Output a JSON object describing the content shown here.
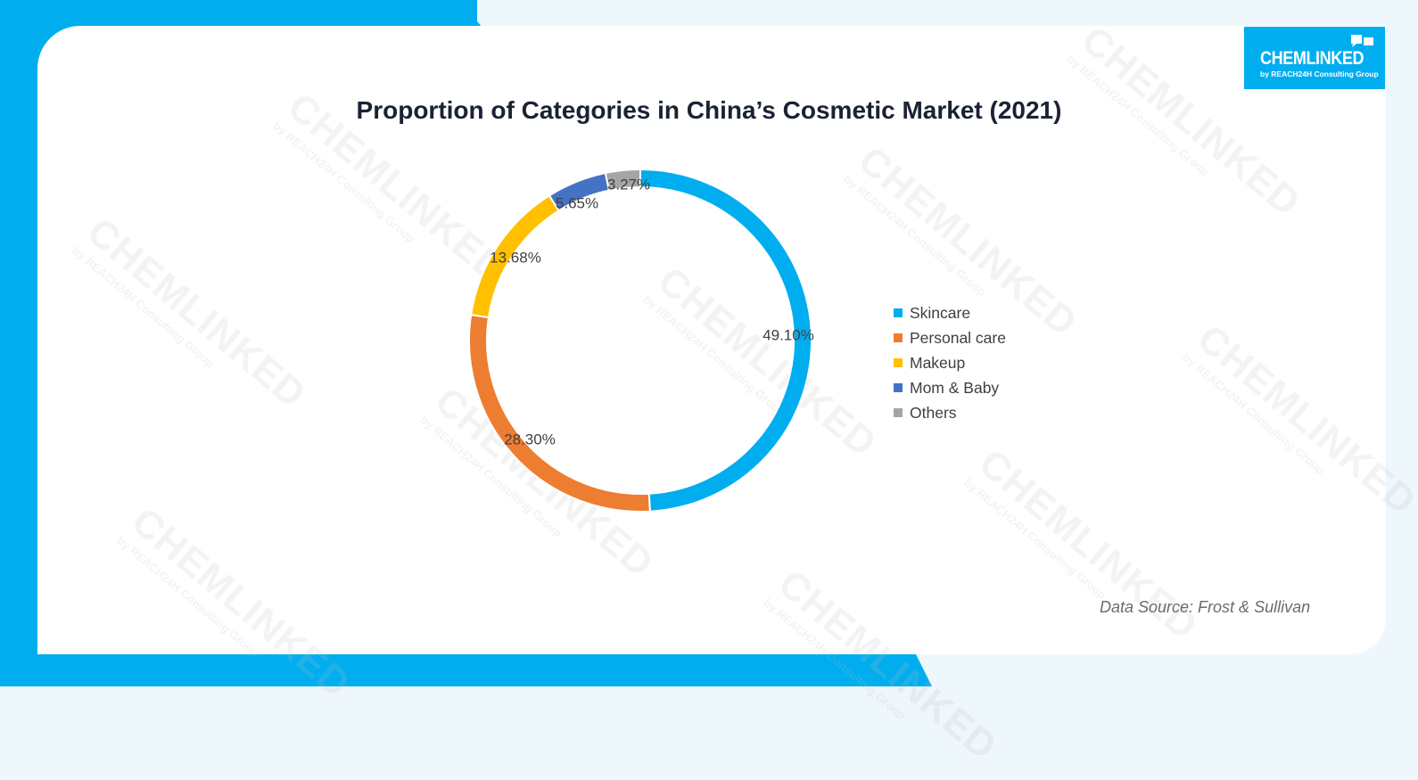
{
  "title": "Proportion of Categories in China’s Cosmetic Market (2021)",
  "source": "Data Source: Frost & Sullivan",
  "logo": {
    "brand": "CHEMLINKED",
    "sub": "by REACH24H Consulting Group"
  },
  "watermark": {
    "brand": "CHEMLINKED",
    "sub": "by REACH24H Consulting Group"
  },
  "colors": {
    "accent": "#00aeef",
    "title": "#1a2233"
  },
  "chart_data": {
    "type": "pie",
    "variant": "donut",
    "title": "Proportion of Categories in China’s Cosmetic Market (2021)",
    "categories": [
      "Skincare",
      "Personal care",
      "Makeup",
      "Mom & Baby",
      "Others"
    ],
    "values": [
      49.1,
      28.3,
      13.68,
      5.65,
      3.27
    ],
    "labels": [
      "49.10%",
      "28.30%",
      "13.68%",
      "5.65%",
      "3.27%"
    ],
    "colors": [
      "#00aeef",
      "#ed7d31",
      "#ffc000",
      "#4472c4",
      "#a5a5a5"
    ],
    "legend": "right"
  }
}
